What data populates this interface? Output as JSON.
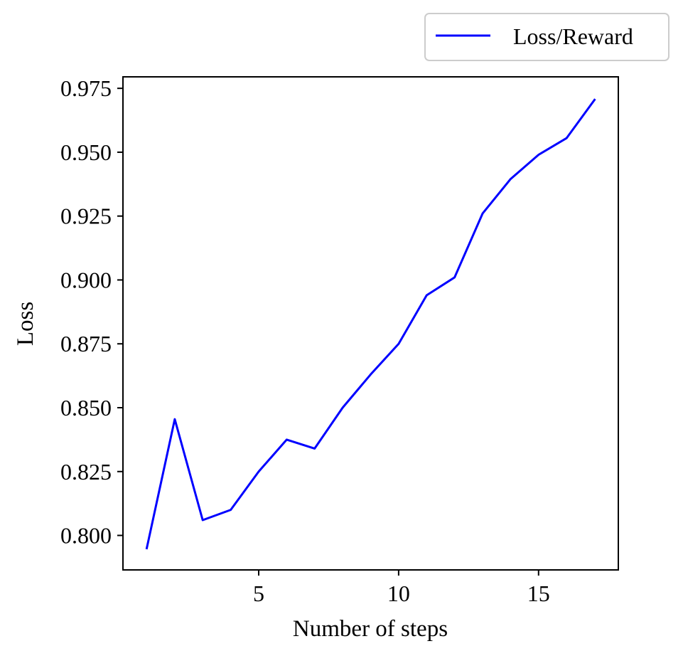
{
  "chart_data": {
    "type": "line",
    "title": "",
    "xlabel": "Number of steps",
    "ylabel": "Loss",
    "xlim": [
      0.15,
      17.85
    ],
    "ylim": [
      0.7865,
      0.9795
    ],
    "xticks": [
      5,
      10,
      15
    ],
    "yticks": [
      0.8,
      0.825,
      0.85,
      0.875,
      0.9,
      0.925,
      0.95,
      0.975
    ],
    "xtick_labels": [
      "5",
      "10",
      "15"
    ],
    "ytick_labels": [
      "0.800",
      "0.825",
      "0.850",
      "0.875",
      "0.900",
      "0.925",
      "0.950",
      "0.975"
    ],
    "grid": false,
    "legend_position": "upper-right-outside",
    "series": [
      {
        "name": "Loss/Reward",
        "color": "#0000ff",
        "x": [
          1,
          2,
          3,
          4,
          5,
          6,
          7,
          8,
          9,
          10,
          11,
          12,
          13,
          14,
          15,
          16,
          17
        ],
        "y": [
          0.795,
          0.8455,
          0.806,
          0.81,
          0.825,
          0.8375,
          0.834,
          0.85,
          0.863,
          0.875,
          0.894,
          0.901,
          0.926,
          0.9395,
          0.949,
          0.9555,
          0.9705
        ]
      }
    ]
  }
}
